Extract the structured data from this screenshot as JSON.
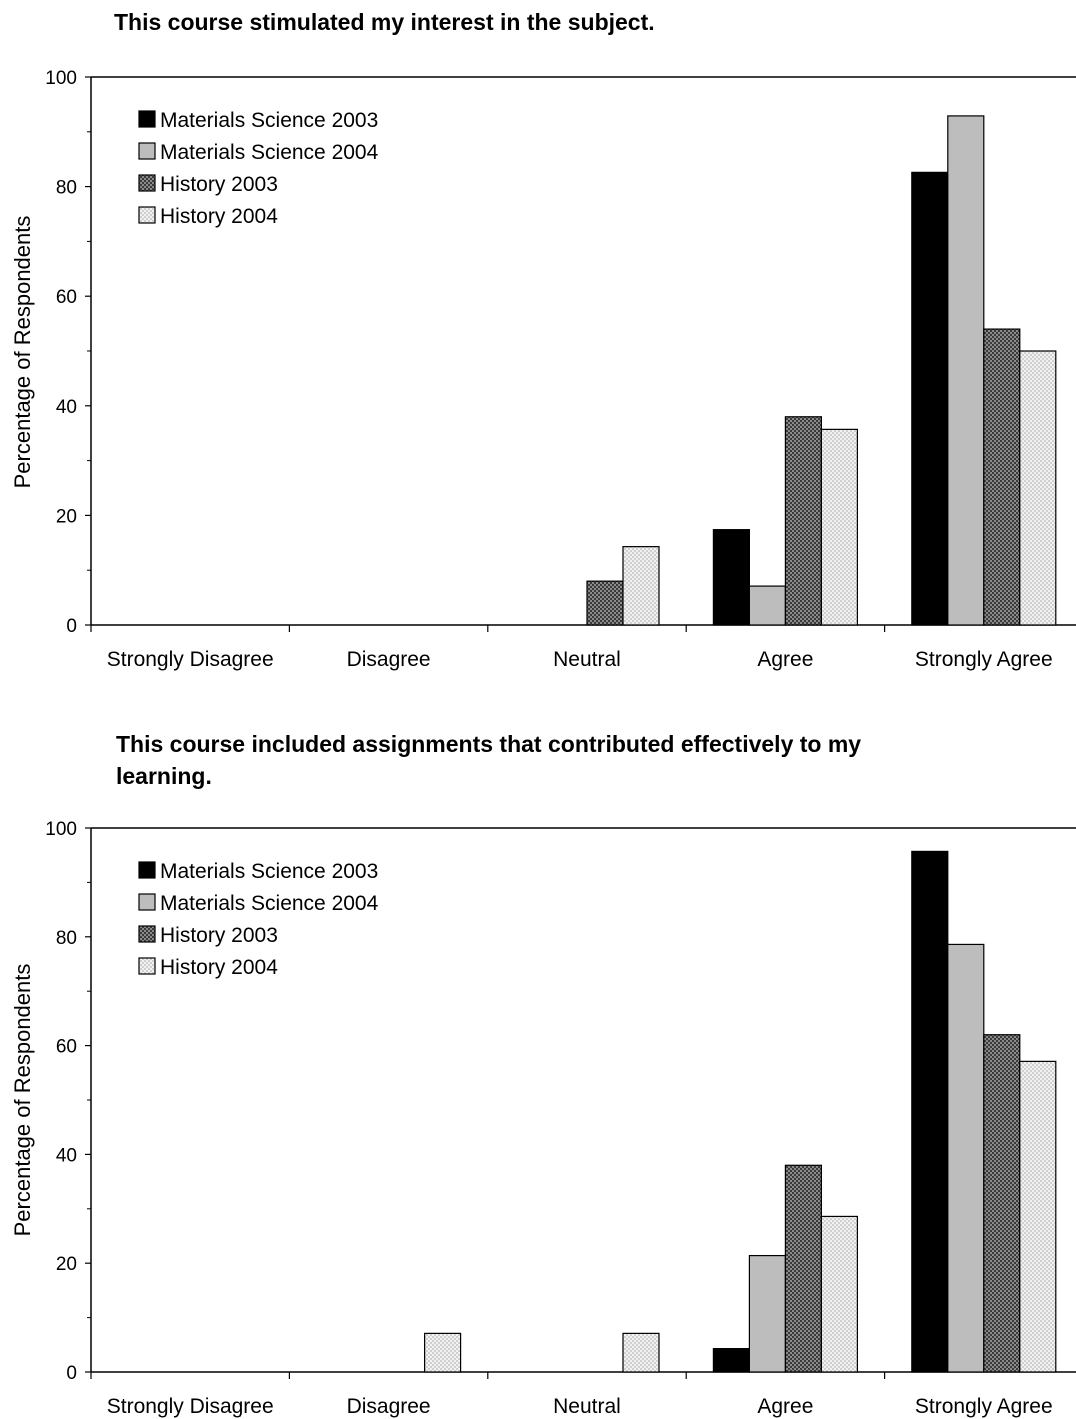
{
  "chart_data": [
    {
      "type": "bar",
      "title": "This course stimulated my interest in the subject.",
      "ylabel": "Percentage of Respondents",
      "xlabel": "",
      "ylim": [
        0,
        100
      ],
      "yticks": [
        "0",
        "20",
        "40",
        "60",
        "80",
        "100"
      ],
      "categories": [
        "Strongly Disagree",
        "Disagree",
        "Neutral",
        "Agree",
        "Strongly Agree"
      ],
      "legend_position": "top-left",
      "grid": false,
      "series": [
        {
          "name": "Materials Science 2003",
          "values": [
            0,
            0,
            0,
            17.4,
            82.6
          ]
        },
        {
          "name": "Materials Science 2004",
          "values": [
            0,
            0,
            0,
            7.1,
            92.9
          ]
        },
        {
          "name": "History 2003",
          "values": [
            0,
            0,
            8,
            38,
            54
          ]
        },
        {
          "name": "History 2004",
          "values": [
            0,
            0,
            14.3,
            35.7,
            50
          ]
        }
      ]
    },
    {
      "type": "bar",
      "title": "This course included assignments that contributed effectively to my learning.",
      "ylabel": "Percentage of Respondents",
      "xlabel": "",
      "ylim": [
        0,
        100
      ],
      "yticks": [
        "0",
        "20",
        "40",
        "60",
        "80",
        "100"
      ],
      "categories": [
        "Strongly Disagree",
        "Disagree",
        "Neutral",
        "Agree",
        "Strongly Agree"
      ],
      "legend_position": "top-left",
      "grid": false,
      "series": [
        {
          "name": "Materials Science 2003",
          "values": [
            0,
            0,
            0,
            4.3,
            95.7
          ]
        },
        {
          "name": "Materials Science 2004",
          "values": [
            0,
            0,
            0,
            21.4,
            78.6
          ]
        },
        {
          "name": "History 2003",
          "values": [
            0,
            0,
            0,
            38,
            62
          ]
        },
        {
          "name": "History 2004",
          "values": [
            0,
            7.1,
            7.1,
            28.6,
            57.1
          ]
        }
      ]
    }
  ]
}
